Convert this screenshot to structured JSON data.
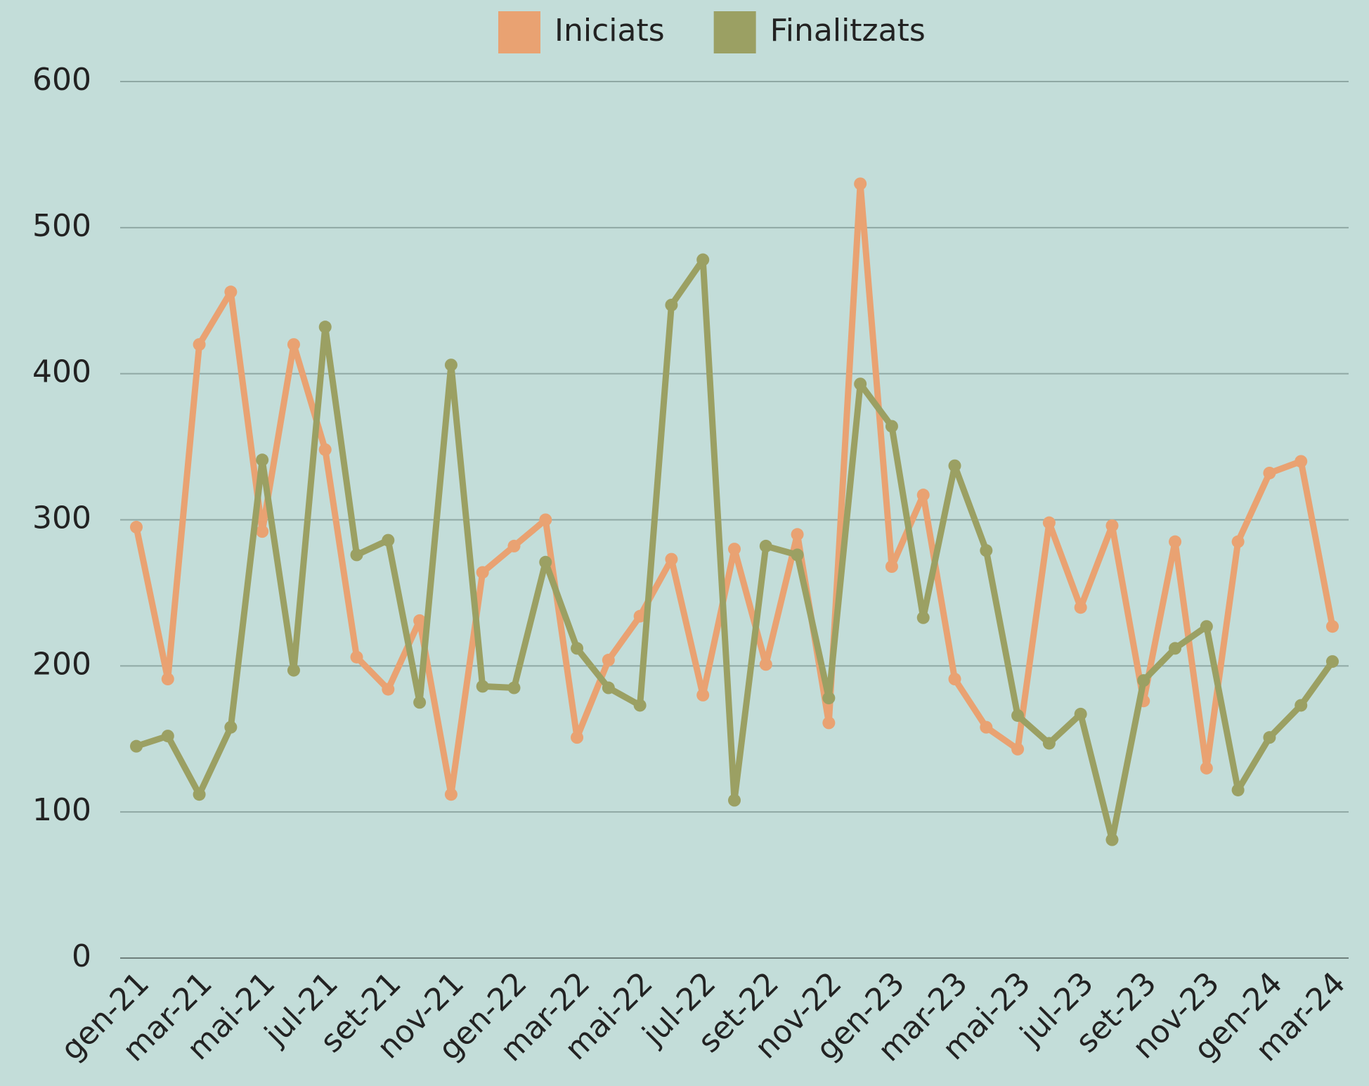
{
  "chart_data": {
    "type": "line",
    "categories": [
      "gen-21",
      null,
      "mar-21",
      null,
      "mai-21",
      null,
      "jul-21",
      null,
      "set-21",
      null,
      "nov-21",
      null,
      "gen-22",
      null,
      "mar-22",
      null,
      "mai-22",
      null,
      "jul-22",
      null,
      "set-22",
      null,
      "nov-22",
      null,
      "gen-23",
      null,
      "mar-23",
      null,
      "mai-23",
      null,
      "jul-23",
      null,
      "set-23",
      null,
      "nov-23",
      null,
      "gen-24",
      null,
      "mar-24"
    ],
    "series": [
      {
        "name": "Iniciats",
        "color": "#e9a272",
        "values": [
          295,
          191,
          420,
          456,
          292,
          420,
          348,
          206,
          184,
          231,
          112,
          264,
          282,
          300,
          151,
          204,
          234,
          273,
          180,
          280,
          201,
          290,
          161,
          530,
          268,
          317,
          191,
          158,
          143,
          298,
          240,
          296,
          176,
          285,
          130,
          285,
          332,
          340,
          227
        ]
      },
      {
        "name": "Finalitzats",
        "color": "#9ba063",
        "values": [
          145,
          152,
          112,
          158,
          341,
          197,
          432,
          276,
          286,
          175,
          406,
          186,
          185,
          271,
          212,
          185,
          173,
          447,
          478,
          108,
          282,
          276,
          178,
          393,
          364,
          233,
          337,
          279,
          166,
          147,
          167,
          81,
          190,
          212,
          227,
          115,
          151,
          173,
          203
        ]
      }
    ],
    "ylim": [
      0,
      600
    ],
    "yticks": [
      0,
      100,
      200,
      300,
      400,
      500,
      600
    ],
    "grid": true,
    "legend": "top"
  }
}
